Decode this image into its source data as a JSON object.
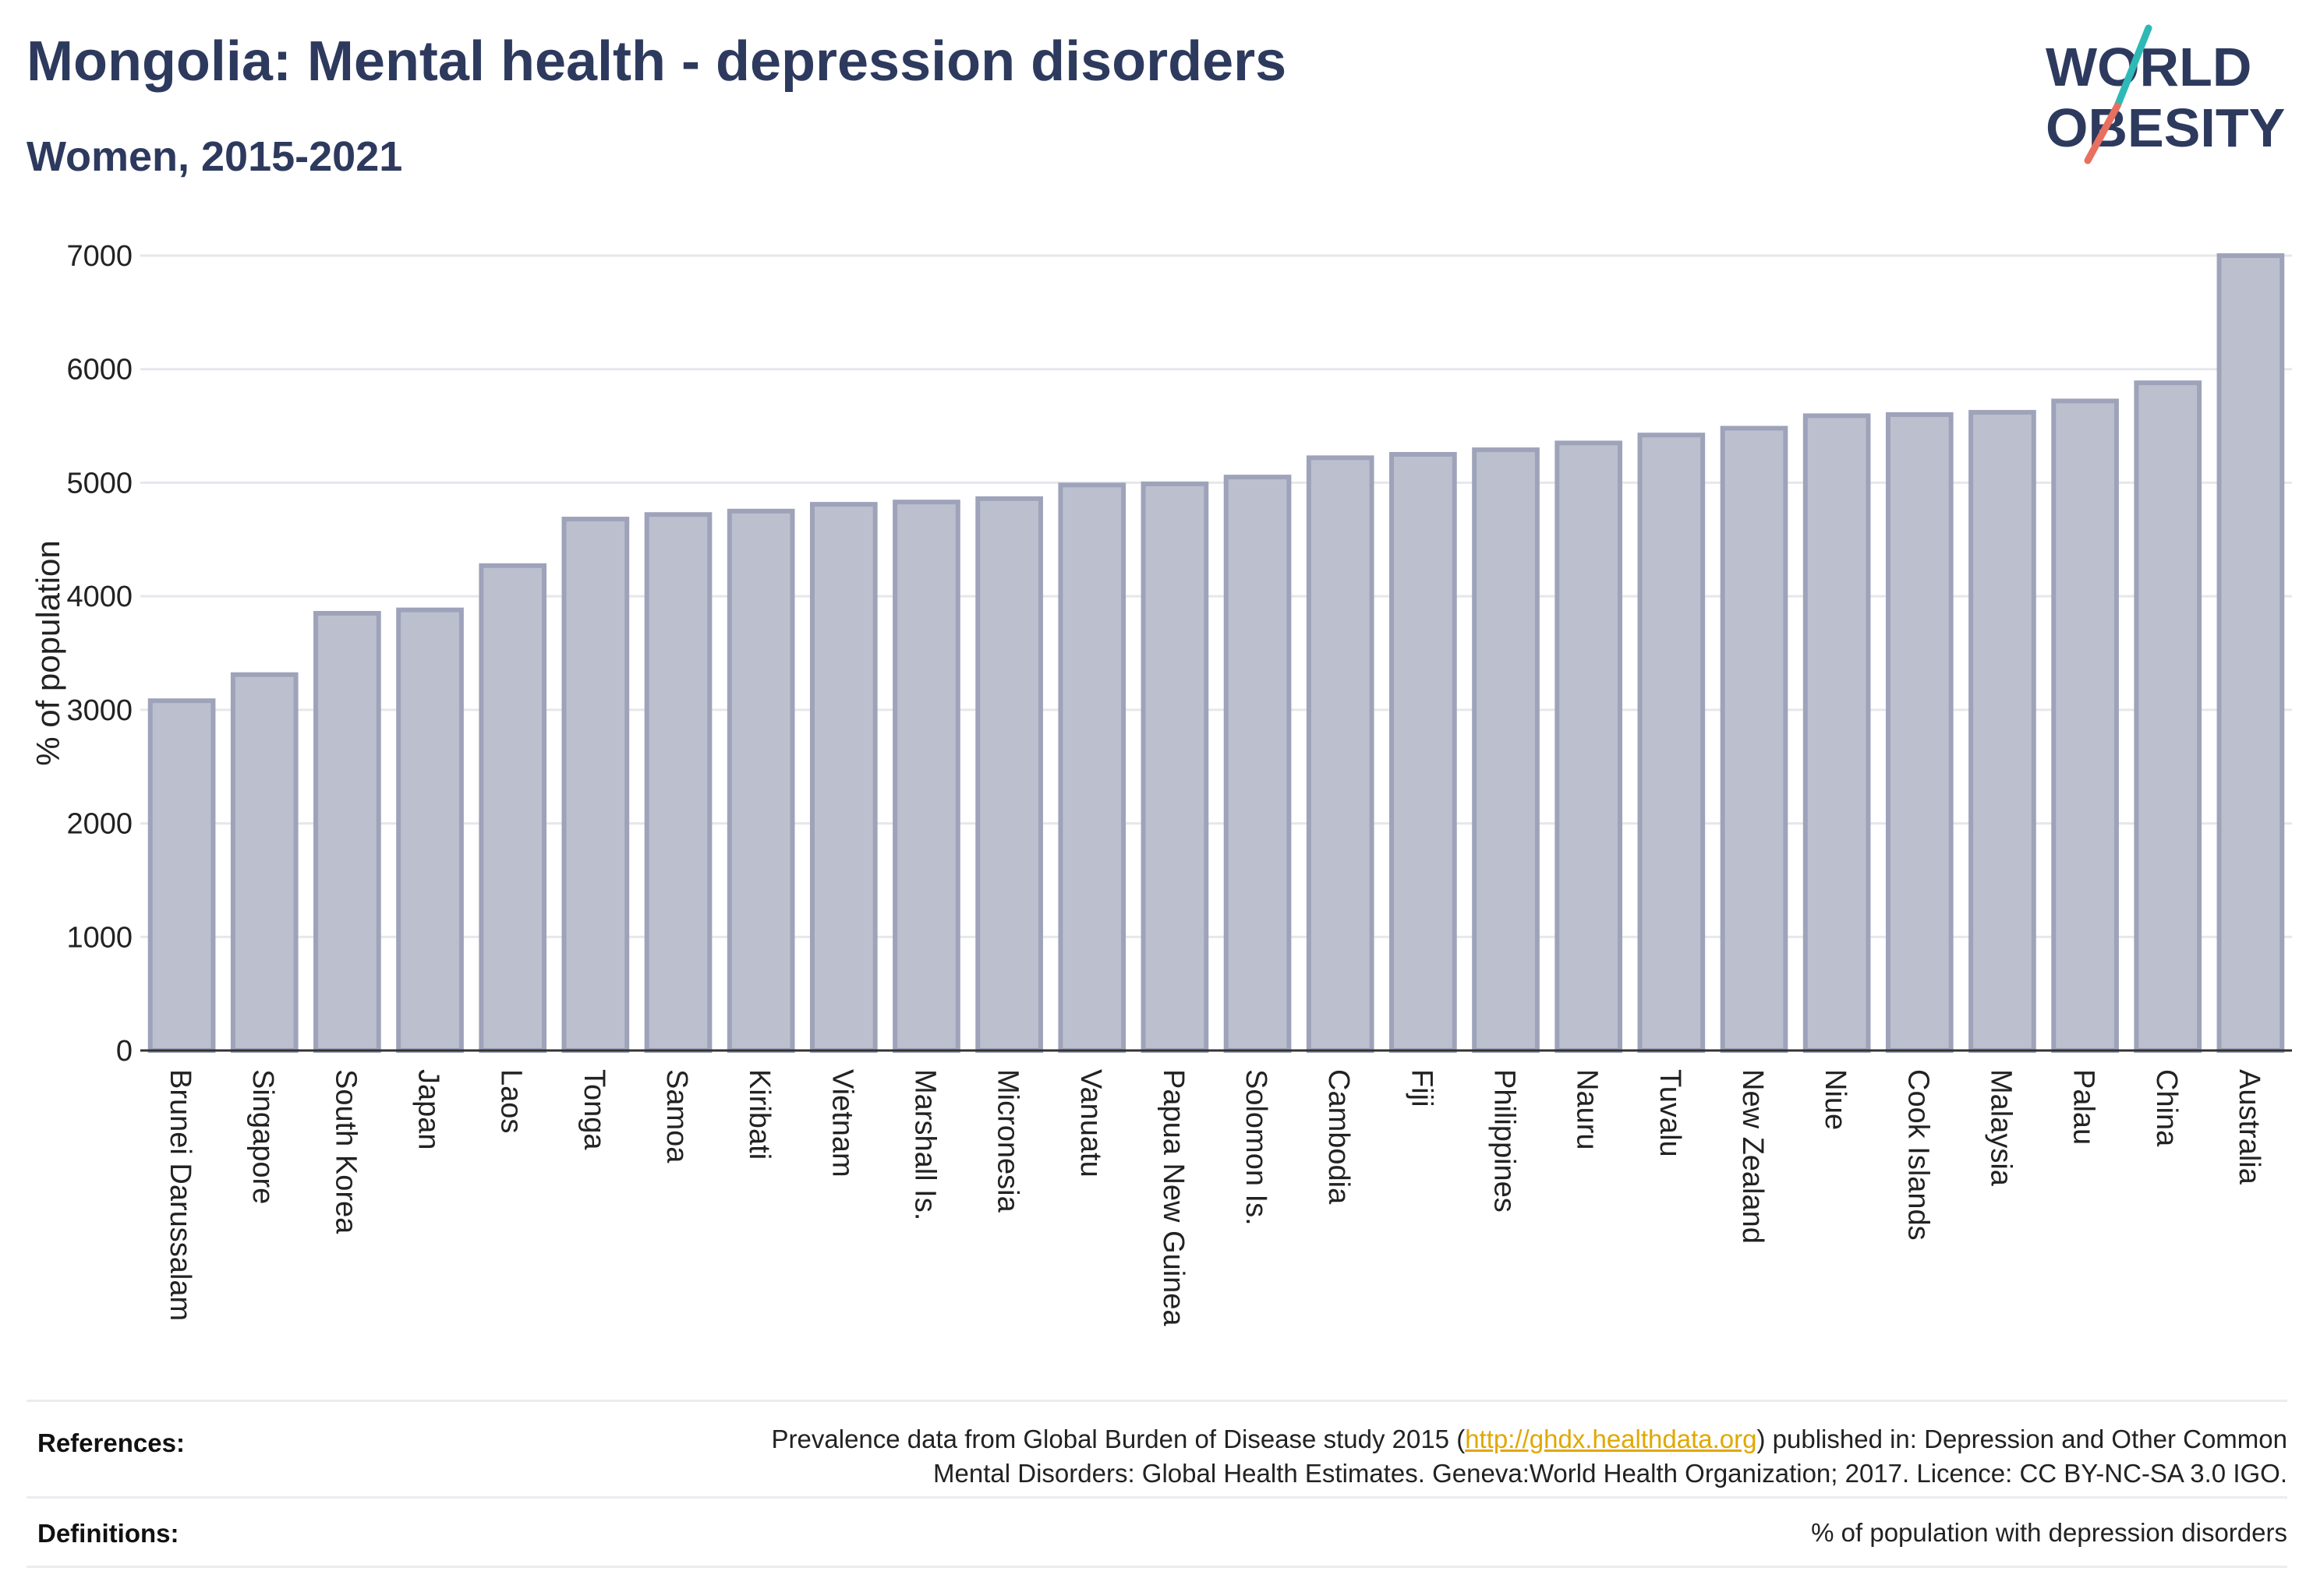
{
  "header": {
    "title": "Mongolia: Mental health - depression disorders",
    "subtitle": "Women, 2015-2021"
  },
  "logo": {
    "line1": "WORLD",
    "line2": "OBESITY",
    "colors": {
      "text": "#2d3a5e",
      "slash_top": "#2fb9b6",
      "slash_bottom": "#e8705f"
    }
  },
  "chart_data": {
    "type": "bar",
    "ylabel": "% of population",
    "ylim": [
      0,
      7000
    ],
    "yticks": [
      0,
      1000,
      2000,
      3000,
      4000,
      5000,
      6000,
      7000
    ],
    "grid": true,
    "bar_fill": "#bcc0ce",
    "bar_stroke": "#9ea3ba",
    "categories": [
      "Brunei Darussalam",
      "Singapore",
      "South Korea",
      "Japan",
      "Laos",
      "Tonga",
      "Samoa",
      "Kiribati",
      "Vietnam",
      "Marshall Is.",
      "Micronesia",
      "Vanuatu",
      "Papua New Guinea",
      "Solomon Is.",
      "Cambodia",
      "Fiji",
      "Philippines",
      "Nauru",
      "Tuvalu",
      "New Zealand",
      "Niue",
      "Cook Islands",
      "Malaysia",
      "Palau",
      "China",
      "Australia"
    ],
    "values": [
      3080,
      3310,
      3850,
      3880,
      4270,
      4680,
      4720,
      4750,
      4810,
      4830,
      4860,
      4980,
      4990,
      5050,
      5220,
      5250,
      5290,
      5350,
      5420,
      5480,
      5590,
      5600,
      5620,
      5720,
      5880,
      7000
    ]
  },
  "footer": {
    "references_label": "References:",
    "references_pre": "Prevalence data from Global Burden of Disease study 2015 (",
    "references_link": "http://ghdx.healthdata.org",
    "references_post": ") published in: Depression and Other Common",
    "references_line2": "Mental Disorders: Global Health Estimates. Geneva:World Health Organization; 2017. Licence: CC BY-NC-SA 3.0 IGO.",
    "definitions_label": "Definitions:",
    "definitions_text": "% of population with depression disorders"
  }
}
